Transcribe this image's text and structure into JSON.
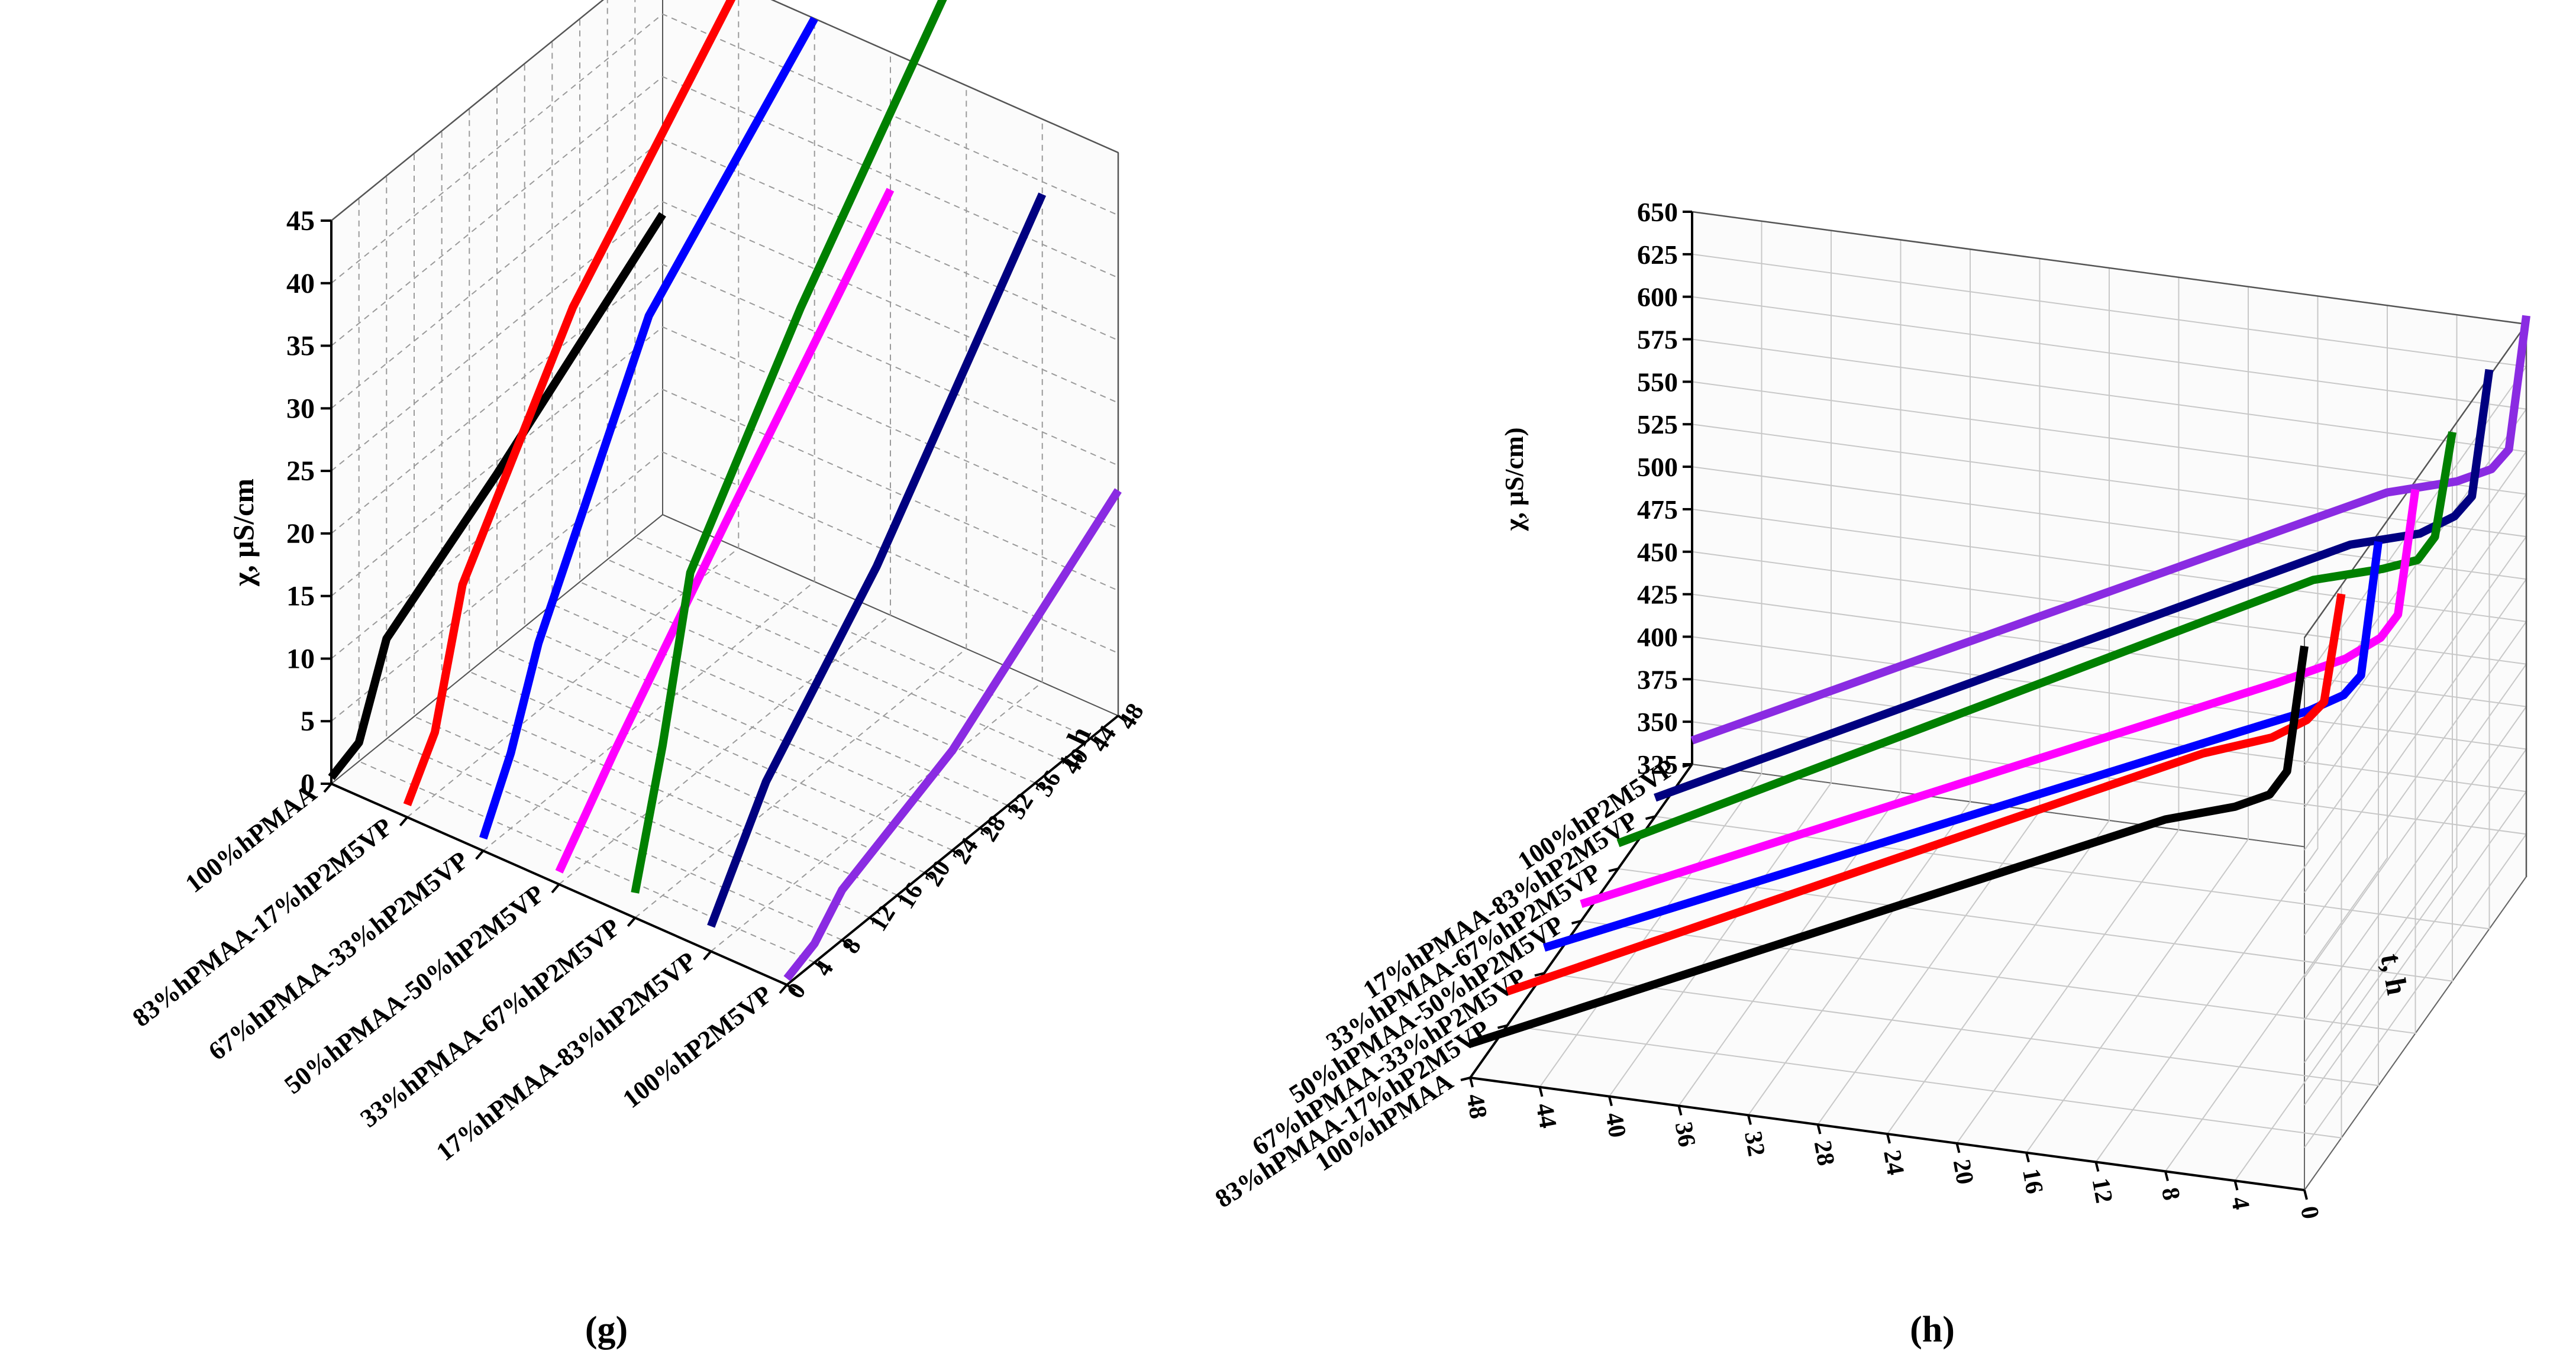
{
  "chart_data": [
    {
      "type": "line",
      "projection": "3d",
      "caption": "(g)",
      "zlabel": "χ, μS/cm",
      "tlabel": "t, h",
      "zlim": [
        0,
        45
      ],
      "z_ticks": [
        "0",
        "5",
        "10",
        "15",
        "20",
        "25",
        "30",
        "35",
        "40",
        "45"
      ],
      "tlim": [
        0,
        48
      ],
      "t_ticks": [
        "0",
        "4",
        "8",
        "12",
        "16",
        "20",
        "24",
        "28",
        "32",
        "36",
        "40",
        "44",
        "48"
      ],
      "x": [
        0,
        4,
        8,
        24,
        48
      ],
      "categories": [
        "100%hPMAA",
        "83%hPMAA-17%hP2M5VP",
        "67%hPMAA-33%hP2M5VP",
        "50%hPMAA-50%hP2M5VP",
        "33%hPMAA-67%hP2M5VP",
        "17%hPMAA-83%hP2M5VP",
        "100%hP2M5VP"
      ],
      "series": [
        {
          "name": "100%hPMAA",
          "color": "#000000",
          "values": [
            0.5,
            1.5,
            8,
            14,
            24
          ]
        },
        {
          "name": "83%hPMAA-17%hP2M5VP",
          "color": "#ff0000",
          "values": [
            1,
            5,
            15,
            30,
            45
          ]
        },
        {
          "name": "67%hPMAA-33%hP2M5VP",
          "color": "#0000ff",
          "values": [
            1,
            6,
            13,
            32,
            45
          ]
        },
        {
          "name": "50%hPMAA-50%hP2M5VP",
          "color": "#ff00ff",
          "values": [
            1,
            4,
            7,
            18,
            34
          ]
        },
        {
          "name": "33%hPMAA-67%hP2M5VP",
          "color": "#008000",
          "values": [
            2,
            12,
            24,
            38,
            56
          ]
        },
        {
          "name": "17%hPMAA-83%hP2M5VP",
          "color": "#000080",
          "values": [
            2,
            6,
            10,
            20,
            39
          ]
        },
        {
          "name": "100%hP2M5VP",
          "color": "#8a2be2",
          "values": [
            0.5,
            1.5,
            4,
            8,
            18
          ]
        }
      ]
    },
    {
      "type": "line",
      "projection": "3d",
      "caption": "(h)",
      "zlabel": "χ, μS/cm)",
      "tlabel": "t, h",
      "zlim": [
        325,
        650
      ],
      "z_ticks": [
        "325",
        "350",
        "375",
        "400",
        "425",
        "450",
        "475",
        "500",
        "525",
        "550",
        "575",
        "600",
        "625",
        "650"
      ],
      "tlim": [
        0,
        48
      ],
      "t_ticks": [
        "0",
        "4",
        "8",
        "12",
        "16",
        "20",
        "24",
        "28",
        "32",
        "36",
        "40",
        "44",
        "48"
      ],
      "x": [
        0,
        1,
        2,
        4,
        8,
        48
      ],
      "categories": [
        "100%hP2M5VP",
        "17%hPMAA-83%hP2M5VP",
        "33%hPMAA-67%hP2M5VP",
        "50%hPMAA-50%hP2M5VP",
        "67%hPMAA-33%hP2M5VP",
        "83%hPMAA-17%hP2M5VP",
        "100%hPMAA"
      ],
      "series": [
        {
          "name": "100%hP2M5VP",
          "color": "#8a2be2",
          "values": [
            655,
            575,
            562,
            552,
            540,
            339
          ]
        },
        {
          "name": "17%hPMAA-83%hP2M5VP",
          "color": "#000080",
          "values": [
            654,
            578,
            565,
            552,
            540,
            336
          ]
        },
        {
          "name": "33%hPMAA-67%hP2M5VP",
          "color": "#008000",
          "values": [
            648,
            585,
            570,
            562,
            550,
            340
          ]
        },
        {
          "name": "50%hPMAA-50%hP2M5VP",
          "color": "#ff00ff",
          "values": [
            645,
            570,
            555,
            540,
            520,
            335
          ]
        },
        {
          "name": "67%hPMAA-33%hP2M5VP",
          "color": "#0000ff",
          "values": [
            645,
            565,
            552,
            540,
            522,
            340
          ]
        },
        {
          "name": "83%hPMAA-17%hP2M5VP",
          "color": "#ff0000",
          "values": [
            645,
            580,
            568,
            555,
            540,
            345
          ]
        },
        {
          "name": "100%hPMAA",
          "color": "#000000",
          "values": [
            645,
            570,
            555,
            545,
            532,
            345
          ]
        }
      ]
    }
  ]
}
